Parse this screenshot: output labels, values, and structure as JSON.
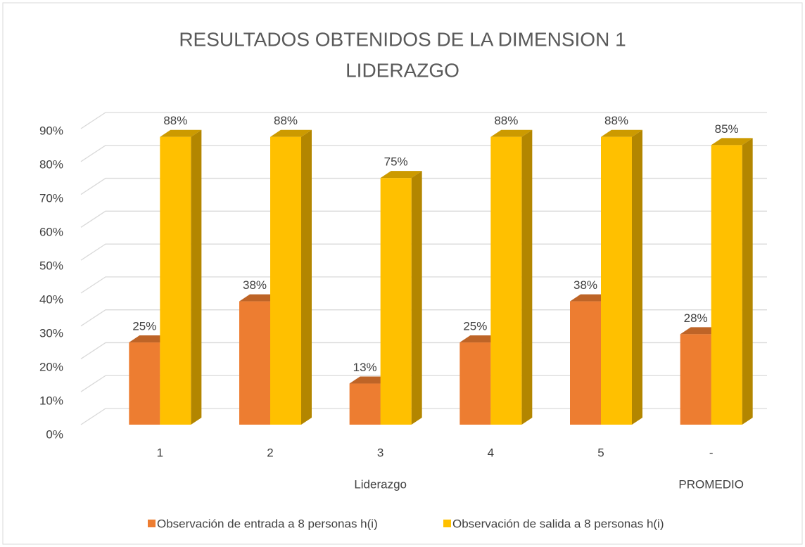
{
  "chart_data": {
    "type": "bar3d",
    "title": [
      "RESULTADOS OBTENIDOS DE LA DIMENSION 1",
      "LIDERAZGO"
    ],
    "categories": [
      "1",
      "2",
      "3",
      "4",
      "5",
      "-"
    ],
    "group_labels": [
      null,
      null,
      "Liderazgo",
      null,
      null,
      "PROMEDIO"
    ],
    "series": [
      {
        "name": "Observación de entrada a 8 personas h(i)",
        "color": "#ed7d31",
        "values": [
          25,
          37.5,
          12.5,
          25,
          37.5,
          27.5
        ],
        "value_labels": [
          "25%",
          "38%",
          "13%",
          "25%",
          "38%",
          "28%"
        ]
      },
      {
        "name": "Observación de salida a 8 personas h(i)",
        "color": "#ffc000",
        "values": [
          87.5,
          87.5,
          75,
          87.5,
          87.5,
          85
        ],
        "value_labels": [
          "88%",
          "88%",
          "75%",
          "88%",
          "88%",
          "85%"
        ]
      }
    ],
    "ylim": [
      0,
      90
    ],
    "yticks": [
      {
        "value": 0,
        "label": "0%"
      },
      {
        "value": 10,
        "label": "10%"
      },
      {
        "value": 20,
        "label": "20%"
      },
      {
        "value": 30,
        "label": "30%"
      },
      {
        "value": 40,
        "label": "40%"
      },
      {
        "value": 50,
        "label": "50%"
      },
      {
        "value": 60,
        "label": "60%"
      },
      {
        "value": 70,
        "label": "70%"
      },
      {
        "value": 80,
        "label": "80%"
      },
      {
        "value": 90,
        "label": "90%"
      }
    ],
    "grid": true,
    "legend": "bottom"
  }
}
